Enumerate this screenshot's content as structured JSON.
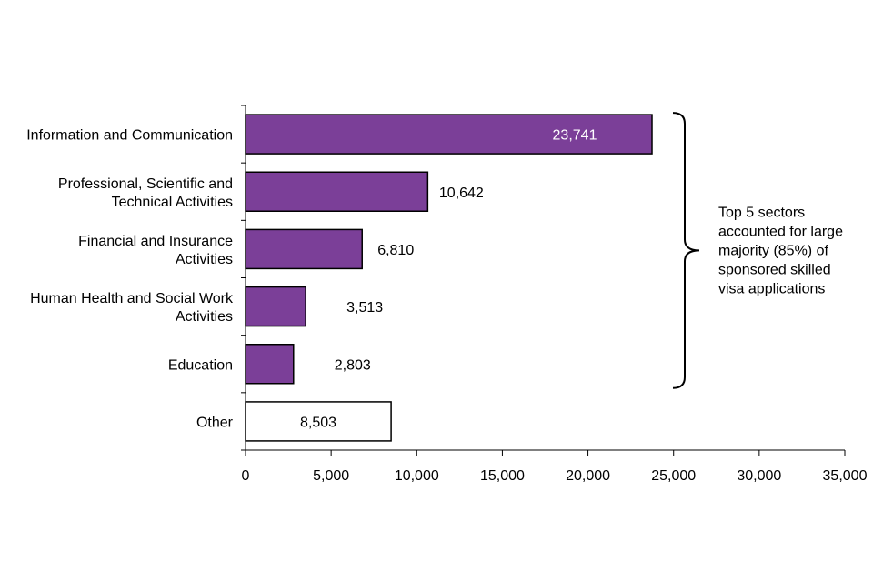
{
  "chart_data": {
    "type": "bar",
    "orientation": "horizontal",
    "categories": [
      [
        "Information and Communication"
      ],
      [
        "Professional, Scientific and",
        "Technical Activities"
      ],
      [
        "Financial and Insurance",
        "Activities"
      ],
      [
        "Human Health and Social Work",
        "Activities"
      ],
      [
        "Education"
      ],
      [
        "Other"
      ]
    ],
    "values": [
      23741,
      10642,
      6810,
      3513,
      2803,
      8503
    ],
    "value_labels": [
      "23,741",
      "10,642",
      "6,810",
      "3,513",
      "2,803",
      "8,503"
    ],
    "bar_fills": [
      "#7B3F98",
      "#7B3F98",
      "#7B3F98",
      "#7B3F98",
      "#7B3F98",
      "#ffffff"
    ],
    "xlim": [
      0,
      35000
    ],
    "xticks": [
      0,
      5000,
      10000,
      15000,
      20000,
      25000,
      30000,
      35000
    ],
    "xtick_labels": [
      "0",
      "5,000",
      "10,000",
      "15,000",
      "20,000",
      "25,000",
      "30,000",
      "35,000"
    ],
    "title": "",
    "xlabel": "",
    "ylabel": "",
    "grid": false,
    "annotation": {
      "lines": [
        "Top 5 sectors",
        "accounted for large",
        "majority (85%) of",
        "sponsored skilled",
        "visa applications"
      ],
      "bracket_span": [
        "Information and Communication",
        "Education"
      ]
    }
  },
  "colors": {
    "bar": "#7B3F98",
    "other_bar": "#ffffff",
    "outline": "#000000"
  }
}
